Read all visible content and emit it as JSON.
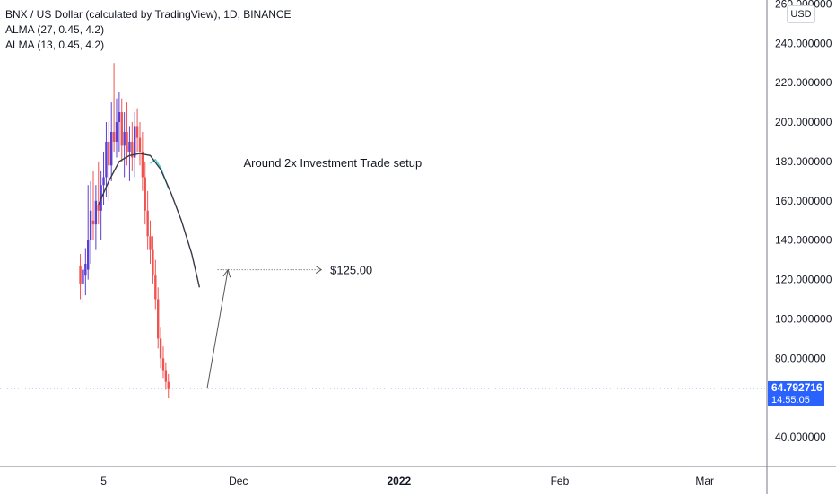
{
  "header": {
    "title": "BNX / US Dollar (calculated by TradingView), 1D, BINANCE",
    "indicators": [
      "ALMA (27, 0.45, 4.2)",
      "ALMA (13, 0.45, 4.2)"
    ]
  },
  "currency_button": "USD",
  "last_price": {
    "value": "64.792716",
    "countdown": "14:55:05"
  },
  "colors": {
    "up": "#5b3fd1",
    "down": "#ef5350",
    "alma_27": "#4dd0e1",
    "alma_13": "#363a45",
    "price_tag": "#2962ff",
    "axis_text": "#131722"
  },
  "chart_data": {
    "type": "candlestick",
    "symbol": "BNX/USD",
    "interval": "1D",
    "ylim": [
      25,
      262
    ],
    "y_ticks": [
      "40.000000",
      "80.000000",
      "100.000000",
      "120.000000",
      "140.000000",
      "160.000000",
      "180.000000",
      "200.000000",
      "220.000000",
      "240.000000",
      "260.000000"
    ],
    "y_tick_values": [
      40,
      80,
      100,
      120,
      140,
      160,
      180,
      200,
      220,
      240,
      260
    ],
    "x_ticks": [
      "5",
      "Dec",
      "2022",
      "Feb",
      "Mar"
    ],
    "x_tick_days": [
      0,
      26,
      57,
      88,
      116
    ],
    "xlim": [
      -20,
      128
    ],
    "candles": [
      [
        -4.5,
        127,
        133,
        110,
        118
      ],
      [
        -4,
        118,
        131,
        108,
        125
      ],
      [
        -3.5,
        122,
        136,
        112,
        128
      ],
      [
        -3,
        125,
        168,
        120,
        140
      ],
      [
        -2.5,
        140,
        170,
        128,
        155
      ],
      [
        -2,
        150,
        175,
        140,
        148
      ],
      [
        -1.5,
        148,
        168,
        135,
        160
      ],
      [
        -1,
        158,
        180,
        148,
        155
      ],
      [
        -0.5,
        155,
        175,
        140,
        168
      ],
      [
        0,
        168,
        185,
        158,
        172
      ],
      [
        0.5,
        172,
        200,
        162,
        190
      ],
      [
        1,
        190,
        200,
        160,
        178
      ],
      [
        1.5,
        178,
        210,
        170,
        195
      ],
      [
        2,
        195,
        230,
        185,
        190
      ],
      [
        2.5,
        190,
        212,
        182,
        200
      ],
      [
        3,
        200,
        215,
        185,
        205
      ],
      [
        3.5,
        205,
        212,
        180,
        188
      ],
      [
        4,
        188,
        205,
        172,
        195
      ],
      [
        4.5,
        195,
        210,
        178,
        185
      ],
      [
        5,
        185,
        198,
        170,
        190
      ],
      [
        5.5,
        190,
        200,
        175,
        182
      ],
      [
        6,
        182,
        205,
        172,
        198
      ],
      [
        6.5,
        198,
        207,
        185,
        192
      ],
      [
        7,
        192,
        200,
        178,
        185
      ],
      [
        7.5,
        185,
        195,
        165,
        172
      ],
      [
        8,
        172,
        180,
        148,
        155
      ],
      [
        8.5,
        155,
        165,
        135,
        142
      ],
      [
        9,
        142,
        150,
        128,
        135
      ],
      [
        9.5,
        135,
        142,
        118,
        122
      ],
      [
        10,
        122,
        130,
        105,
        110
      ],
      [
        10.5,
        110,
        116,
        85,
        90
      ],
      [
        11,
        90,
        96,
        75,
        80
      ],
      [
        11.5,
        80,
        86,
        70,
        74
      ],
      [
        12,
        74,
        78,
        64,
        68
      ],
      [
        12.5,
        68,
        72,
        60,
        64.79
      ]
    ],
    "series": [
      {
        "name": "ALMA (27, 0.45, 4.2)",
        "x": [
          9,
          10,
          11,
          12,
          12.5
        ],
        "y": [
          179,
          181,
          177,
          170,
          166
        ]
      },
      {
        "name": "ALMA (13, 0.45, 4.2)",
        "x": [
          -1,
          1,
          3,
          5,
          7,
          9,
          11,
          13,
          15,
          17,
          18.5
        ],
        "y": [
          158,
          170,
          180,
          183,
          184,
          183,
          176,
          164,
          150,
          133,
          116
        ]
      }
    ],
    "annotations": [
      {
        "text": "Around 2x Investment Trade setup",
        "x": 27,
        "y": 179
      },
      {
        "text": "$125.00",
        "level": 125,
        "x_start": 22,
        "x_end": 42
      }
    ],
    "projection_arrow": {
      "from": [
        20,
        65
      ],
      "to": [
        24,
        125
      ]
    },
    "last_price": 64.79
  }
}
